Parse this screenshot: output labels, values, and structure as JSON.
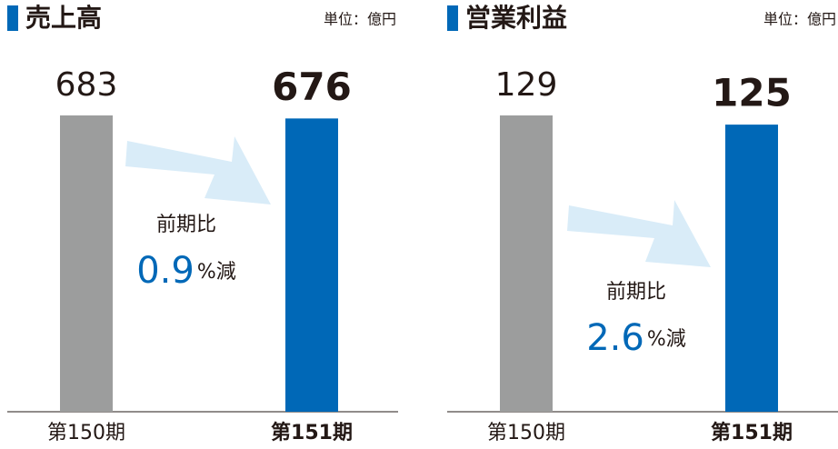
{
  "chart_data": [
    {
      "type": "bar",
      "title": "売上高",
      "unit": "単位：億円",
      "categories": [
        "第150期",
        "第151期"
      ],
      "values": [
        683,
        676
      ],
      "colors": [
        "#9c9d9d",
        "#0068b7"
      ],
      "annotation": {
        "label": "前期比",
        "change": "0.9",
        "suffix": "%減"
      }
    },
    {
      "type": "bar",
      "title": "営業利益",
      "unit": "単位：億円",
      "categories": [
        "第150期",
        "第151期"
      ],
      "values": [
        129,
        125
      ],
      "colors": [
        "#9c9d9d",
        "#0068b7"
      ],
      "annotation": {
        "label": "前期比",
        "change": "2.6",
        "suffix": "%減"
      }
    }
  ]
}
